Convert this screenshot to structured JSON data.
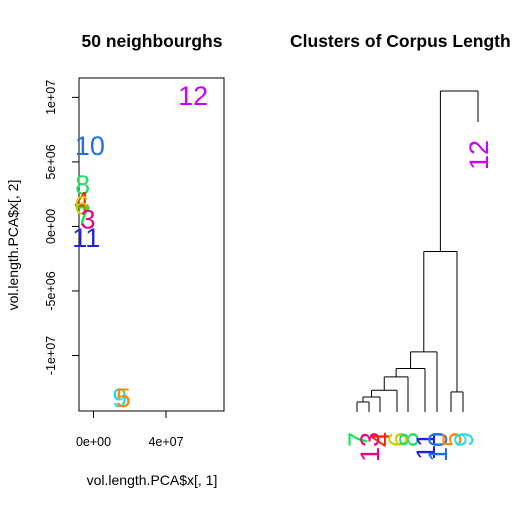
{
  "chart_data": [
    {
      "type": "scatter",
      "title": "50 neighbourghs",
      "xlabel": "vol.length.PCA$x[, 1]",
      "ylabel": "vol.length.PCA$x[, 2]",
      "xlim": [
        -8000000,
        72000000
      ],
      "ylim": [
        -14300000,
        11500000
      ],
      "x_ticks": [
        {
          "value": 0,
          "label": "0e+00"
        },
        {
          "value": 40000000,
          "label": "4e+07"
        }
      ],
      "y_ticks": [
        {
          "value": 10000000,
          "label": "1e+07"
        },
        {
          "value": 5000000,
          "label": "5e+06"
        },
        {
          "value": 0,
          "label": "0e+00"
        },
        {
          "value": -5000000,
          "label": "-5e+06"
        },
        {
          "value": -10000000,
          "label": "-1e+07"
        }
      ],
      "points": [
        {
          "label": "12",
          "x": 55000000,
          "y": 10200000,
          "color": "#cc00ff"
        },
        {
          "label": "10",
          "x": -2000000,
          "y": 6300000,
          "color": "#1f6fe6"
        },
        {
          "label": "8",
          "x": -6000000,
          "y": 3300000,
          "color": "#22dd66"
        },
        {
          "label": "4",
          "x": -6500000,
          "y": 2000000,
          "color": "#ff2200"
        },
        {
          "label": "6",
          "x": -6500000,
          "y": 1700000,
          "color": "#cccc00"
        },
        {
          "label": "7",
          "x": -5500000,
          "y": 900000,
          "color": "#00ee44"
        },
        {
          "label": "3",
          "x": -3000000,
          "y": 600000,
          "color": "#ee0088"
        },
        {
          "label": "11",
          "x": -4000000,
          "y": -800000,
          "color": "#2222dd"
        },
        {
          "label": "9",
          "x": 14500000,
          "y": -13200000,
          "color": "#22ddee"
        },
        {
          "label": "5",
          "x": 16500000,
          "y": -13200000,
          "color": "#ff8800"
        }
      ]
    },
    {
      "type": "dendrogram",
      "title": "Clusters of Corpus Length",
      "leaves": [
        {
          "label": "7",
          "color": "#00ee44"
        },
        {
          "label": "13",
          "color": "#ee0088"
        },
        {
          "label": "4",
          "color": "#ff2200"
        },
        {
          "label": "6",
          "color": "#cccc00"
        },
        {
          "label": "8",
          "color": "#22dd66"
        },
        {
          "label": "11",
          "color": "#2222dd"
        },
        {
          "label": "10",
          "color": "#1f6fe6"
        },
        {
          "label": "5",
          "color": "#ff8800"
        },
        {
          "label": "9",
          "color": "#22ddee"
        },
        {
          "label": "12",
          "color": "#cc00ff"
        }
      ],
      "merges": [
        {
          "a": 0,
          "b": 1,
          "height": 0.6
        },
        {
          "a": 2,
          "b": -1,
          "height": 0.9
        },
        {
          "a": 3,
          "b": -2,
          "height": 1.3
        },
        {
          "a": 4,
          "b": -3,
          "height": 2.1
        },
        {
          "a": 5,
          "b": -4,
          "height": 2.6
        },
        {
          "a": 6,
          "b": -5,
          "height": 3.6
        },
        {
          "a": 7,
          "b": 8,
          "height": 1.2
        },
        {
          "a": -6,
          "b": -7,
          "height": 9.6
        },
        {
          "a": 9,
          "b": -8,
          "height": 19.2
        }
      ]
    }
  ]
}
